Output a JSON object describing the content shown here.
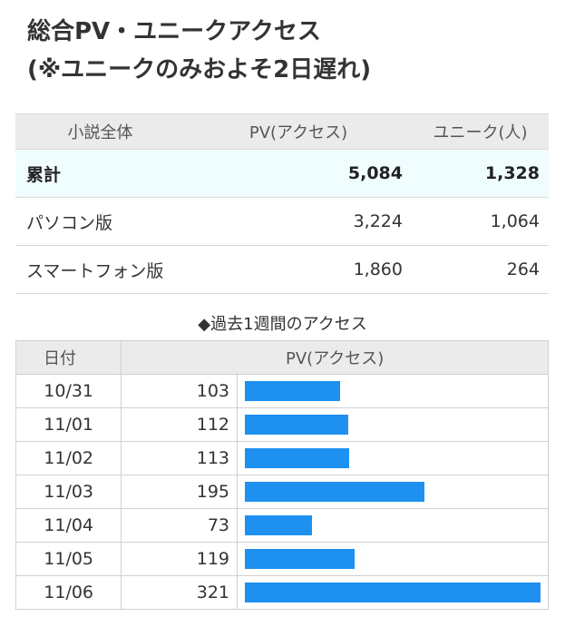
{
  "title": {
    "line1": "総合PV・ユニークアクセス",
    "line2": "(※ユニークのみおよそ2日遅れ)"
  },
  "summary": {
    "headers": [
      "小説全体",
      "PV(アクセス)",
      "ユニーク(人)"
    ],
    "rows": [
      {
        "label": "累計",
        "pv": "5,084",
        "unique": "1,328"
      },
      {
        "label": "パソコン版",
        "pv": "3,224",
        "unique": "1,064"
      },
      {
        "label": "スマートフォン版",
        "pv": "1,860",
        "unique": "264"
      }
    ]
  },
  "weekly": {
    "heading": "◆過去1週間のアクセス",
    "headers": [
      "日付",
      "PV(アクセス)"
    ],
    "bar_color": "#1e90f0",
    "max_pv": 321
  },
  "chart_data": {
    "type": "bar",
    "categories": [
      "10/31",
      "11/01",
      "11/02",
      "11/03",
      "11/04",
      "11/05",
      "11/06"
    ],
    "values": [
      103,
      112,
      113,
      195,
      73,
      119,
      321
    ],
    "title": "◆過去1週間のアクセス",
    "xlabel": "日付",
    "ylabel": "PV(アクセス)"
  }
}
